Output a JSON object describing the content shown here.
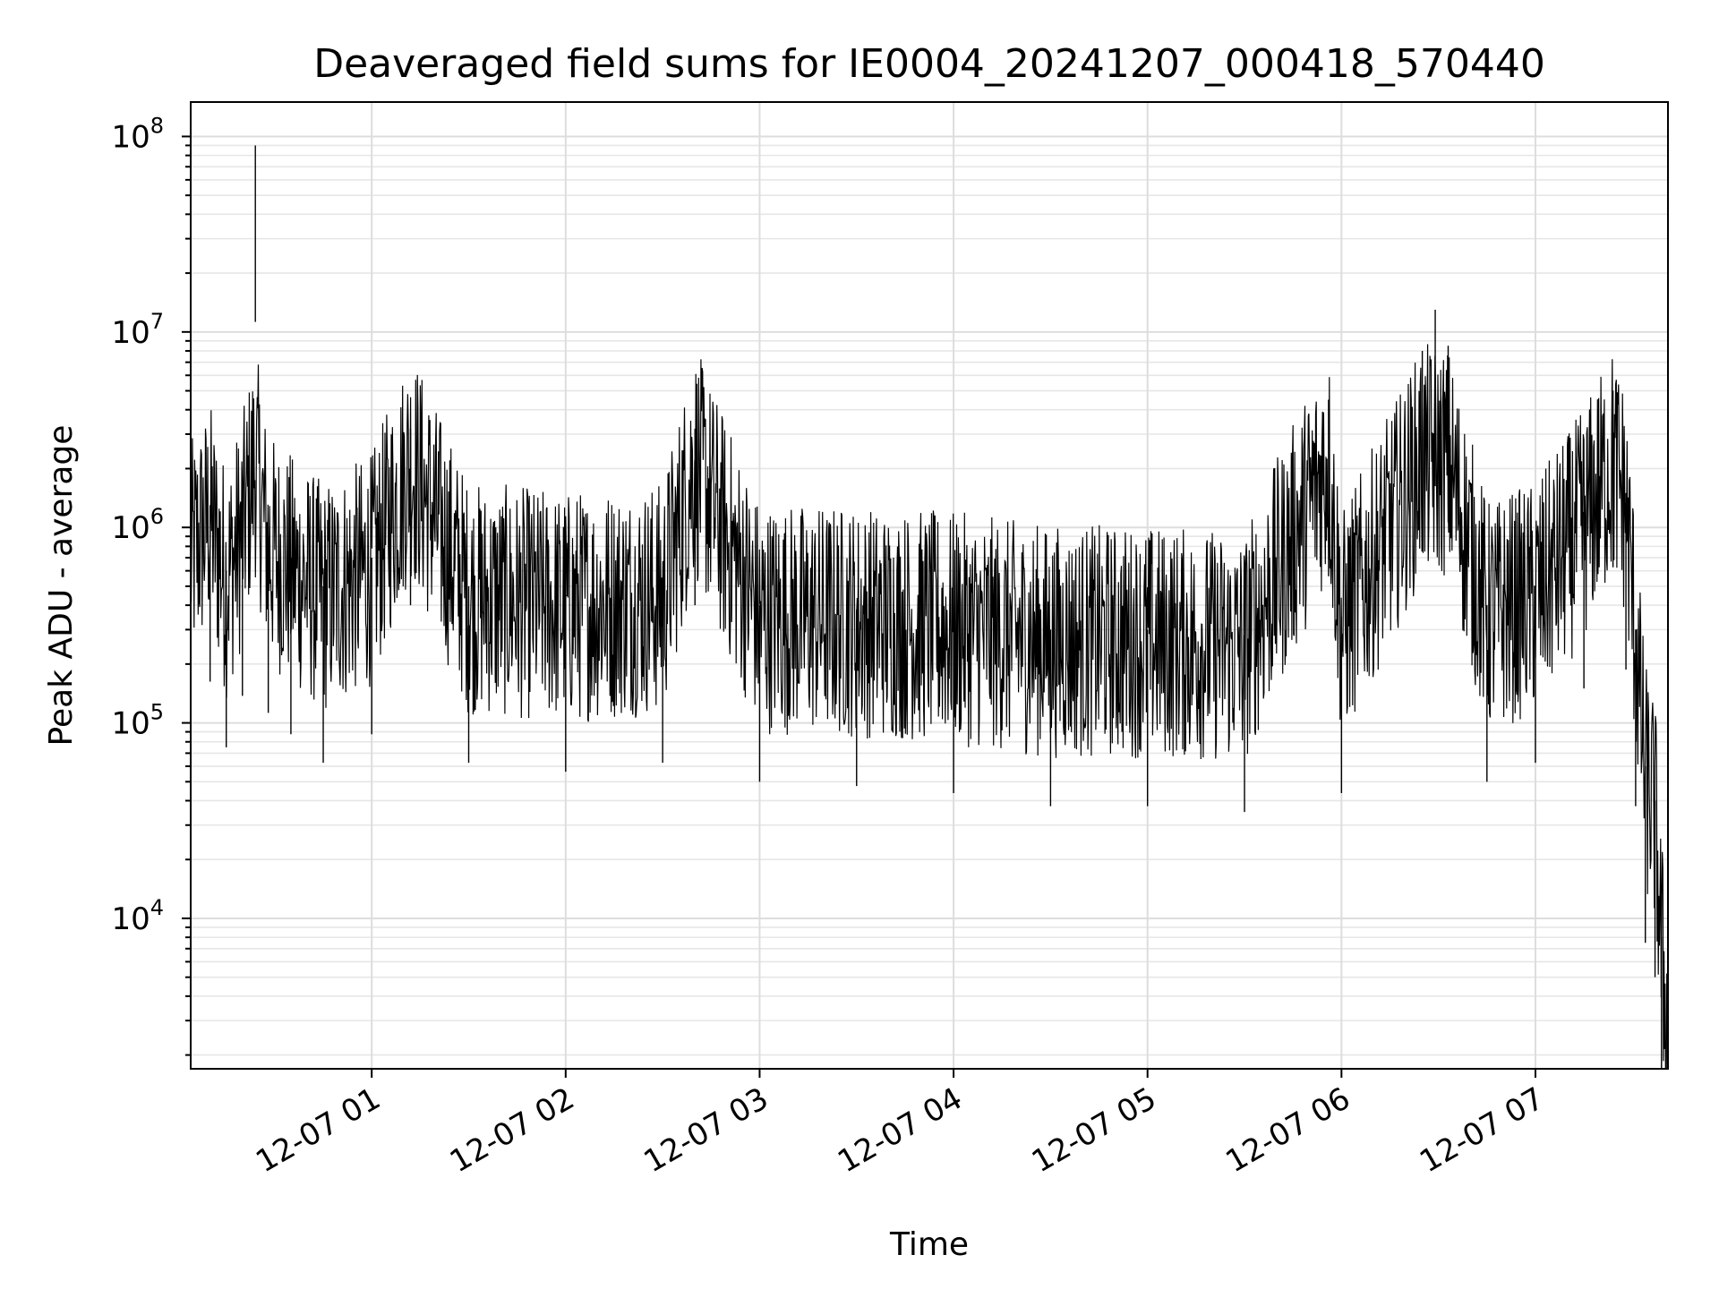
{
  "chart_data": {
    "type": "line",
    "title": "Deaveraged field sums for IE0004_20241207_000418_570440",
    "xlabel": "Time",
    "ylabel": "Peak ADU - average",
    "yscale": "log",
    "ylim": [
      1700,
      150000000
    ],
    "xlim": [
      "12-07 00:04",
      "12-07 07:41"
    ],
    "grid": true,
    "line_color": "#000000",
    "x_ticks": [
      "12-07 01",
      "12-07 02",
      "12-07 03",
      "12-07 04",
      "12-07 05",
      "12-07 06",
      "12-07 07"
    ],
    "y_ticks": [
      {
        "base": "10",
        "exp": "4",
        "value": 10000
      },
      {
        "base": "10",
        "exp": "5",
        "value": 100000
      },
      {
        "base": "10",
        "exp": "6",
        "value": 1000000
      },
      {
        "base": "10",
        "exp": "7",
        "value": 10000000
      },
      {
        "base": "10",
        "exp": "8",
        "value": 100000000
      }
    ],
    "series": [
      {
        "points": [
          {
            "x": "12-07 00:04",
            "y": 800000
          },
          {
            "x": "12-07 00:10",
            "y": 1300000
          },
          {
            "x": "12-07 00:15",
            "y": 600000
          },
          {
            "x": "12-07 00:20",
            "y": 1100000
          },
          {
            "x": "12-07 00:24",
            "y": 90000000
          },
          {
            "x": "12-07 00:28",
            "y": 900000
          },
          {
            "x": "12-07 00:35",
            "y": 700000
          },
          {
            "x": "12-07 00:45",
            "y": 500000
          },
          {
            "x": "12-07 01:00",
            "y": 700000
          },
          {
            "x": "12-07 01:12",
            "y": 3200000
          },
          {
            "x": "12-07 01:30",
            "y": 500000
          },
          {
            "x": "12-07 02:00",
            "y": 450000
          },
          {
            "x": "12-07 02:30",
            "y": 500000
          },
          {
            "x": "12-07 02:40",
            "y": 3200000
          },
          {
            "x": "12-07 03:00",
            "y": 400000
          },
          {
            "x": "12-07 03:30",
            "y": 380000
          },
          {
            "x": "12-07 04:00",
            "y": 350000
          },
          {
            "x": "12-07 04:30",
            "y": 300000
          },
          {
            "x": "12-07 05:00",
            "y": 300000
          },
          {
            "x": "12-07 05:30",
            "y": 280000
          },
          {
            "x": "12-07 05:56",
            "y": 4500000
          },
          {
            "x": "12-07 06:00",
            "y": 350000
          },
          {
            "x": "12-07 06:25",
            "y": 8000000
          },
          {
            "x": "12-07 06:29",
            "y": 13000000
          },
          {
            "x": "12-07 06:33",
            "y": 8500000
          },
          {
            "x": "12-07 06:45",
            "y": 400000
          },
          {
            "x": "12-07 07:00",
            "y": 500000
          },
          {
            "x": "12-07 07:15",
            "y": 1200000
          },
          {
            "x": "12-07 07:24",
            "y": 5000000
          },
          {
            "x": "12-07 07:28",
            "y": 1500000
          },
          {
            "x": "12-07 07:31",
            "y": 300000
          },
          {
            "x": "12-07 07:34",
            "y": 60000
          },
          {
            "x": "12-07 07:37",
            "y": 40000
          },
          {
            "x": "12-07 07:39",
            "y": 8000
          },
          {
            "x": "12-07 07:41",
            "y": 3000
          }
        ]
      }
    ]
  }
}
